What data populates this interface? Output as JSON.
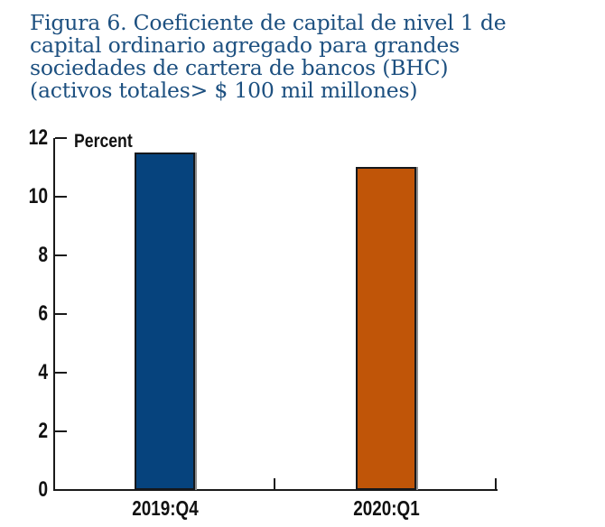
{
  "title": {
    "lines": [
      "Figura 6. Coeficiente de capital de nivel 1 de",
      "capital ordinario agregado para grandes",
      "sociedades de cartera de bancos (BHC)",
      "(activos totales> $ 100 mil millones)"
    ],
    "color": "#1d5080"
  },
  "chart_data": {
    "type": "bar",
    "title": "Figura 6. Coeficiente de capital de nivel 1 de capital ordinario agregado para grandes sociedades de cartera de bancos (BHC) (activos totales> $ 100 mil millones)",
    "categories": [
      "2019:Q4",
      "2020:Q1"
    ],
    "values": [
      11.5,
      11.0
    ],
    "ylabel": "Percent",
    "xlabel": "",
    "ylim": [
      0,
      12
    ],
    "yticks": [
      0,
      2,
      4,
      6,
      8,
      10,
      12
    ],
    "grid": false,
    "legend": "none",
    "bar_colors": [
      "#06437d",
      "#c05508"
    ],
    "bar_border_color": "#15181c",
    "axis_color": "#1a1a1a",
    "tick_direction": "in"
  }
}
